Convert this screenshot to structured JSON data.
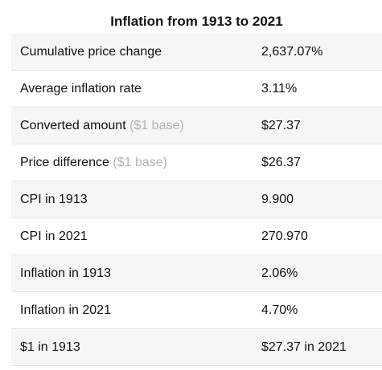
{
  "table": {
    "title": "Inflation from 1913 to 2021",
    "rows": [
      {
        "label": "Cumulative price change",
        "note": "",
        "value": "2,637.07%"
      },
      {
        "label": "Average inflation rate",
        "note": "",
        "value": "3.11%"
      },
      {
        "label": "Converted amount",
        "note": "($1 base)",
        "value": "$27.37"
      },
      {
        "label": "Price difference",
        "note": "($1 base)",
        "value": "$26.37"
      },
      {
        "label": "CPI in 1913",
        "note": "",
        "value": "9.900"
      },
      {
        "label": "CPI in 2021",
        "note": "",
        "value": "270.970"
      },
      {
        "label": "Inflation in 1913",
        "note": "",
        "value": "2.06%"
      },
      {
        "label": "Inflation in 2021",
        "note": "",
        "value": "4.70%"
      },
      {
        "label": "$1 in 1913",
        "note": "",
        "value": "$27.37 in 2021"
      }
    ]
  }
}
